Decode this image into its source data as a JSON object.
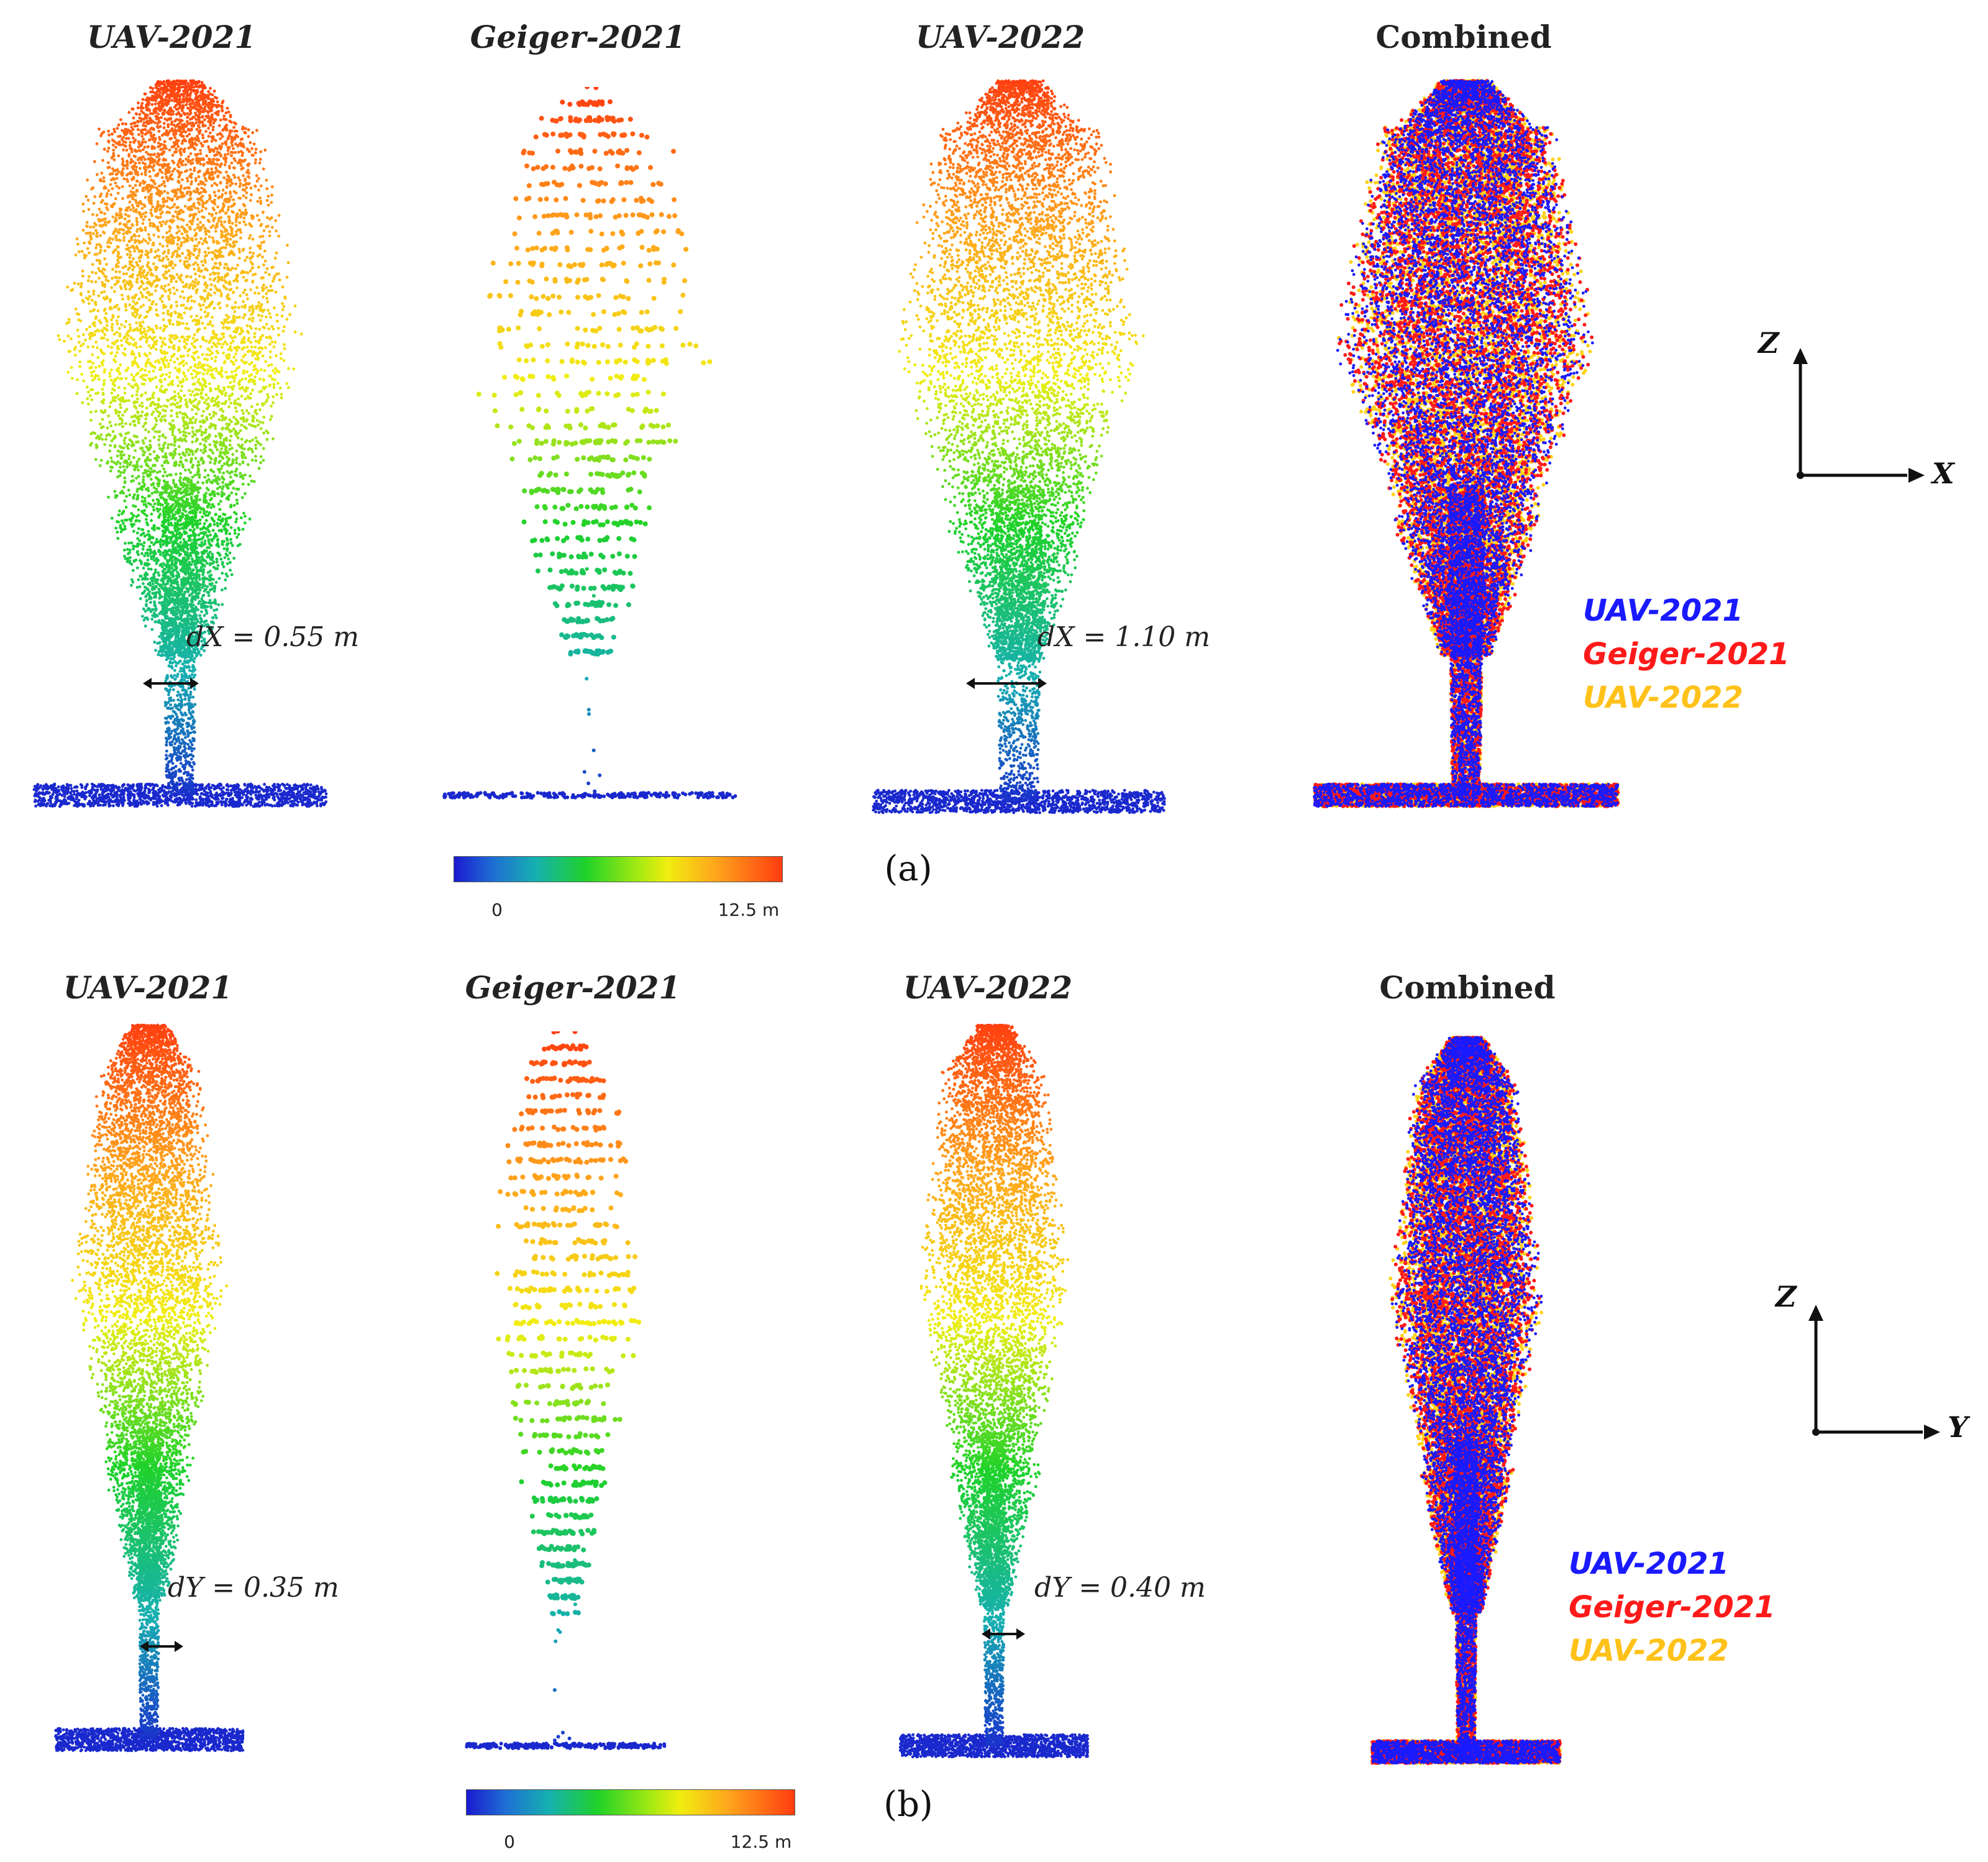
{
  "figure": {
    "section_a": {
      "label": "(a)",
      "titles": [
        "UAV-2021",
        "Geiger-2021",
        "UAV-2022",
        "Combined"
      ],
      "measurements": [
        "dX = 0.55 m",
        "dX = 1.10 m"
      ],
      "axes": {
        "vertical": "Z",
        "horizontal": "X"
      }
    },
    "section_b": {
      "label": "(b)",
      "titles": [
        "UAV-2021",
        "Geiger-2021",
        "UAV-2022",
        "Combined"
      ],
      "measurements": [
        "dY = 0.35 m",
        "dY = 0.40 m"
      ],
      "axes": {
        "vertical": "Z",
        "horizontal": "Y"
      }
    },
    "legend": {
      "entries": [
        {
          "name": "UAV-2021",
          "color": "#1a1aff"
        },
        {
          "name": "Geiger-2021",
          "color": "#ff1a1a"
        },
        {
          "name": "UAV-2022",
          "color": "#ffd21a"
        }
      ]
    },
    "colorbar": {
      "min_label": "0",
      "max_label": "12.5 m",
      "colors": [
        "#1a1ad0",
        "#16b0b0",
        "#1fd22a",
        "#f0ee10",
        "#ffa41c",
        "#ff3c10"
      ]
    }
  }
}
